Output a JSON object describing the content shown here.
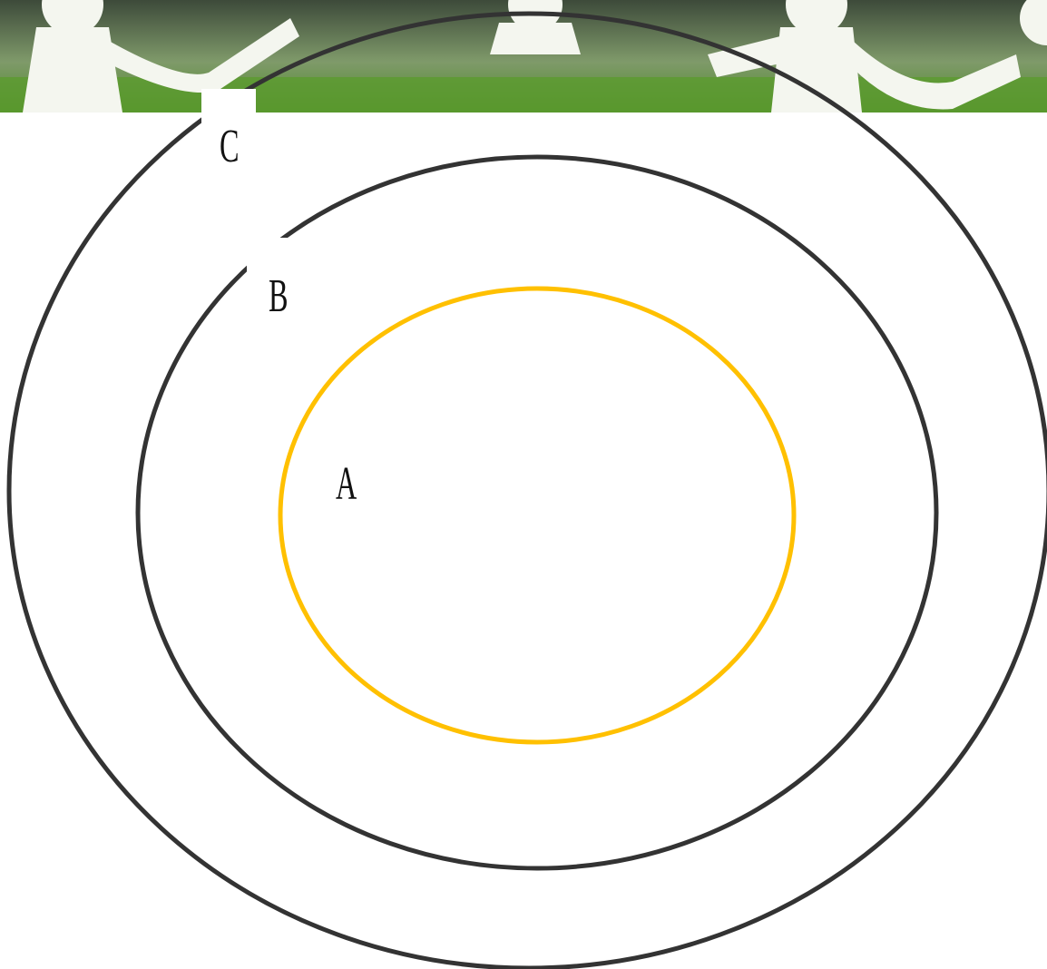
{
  "rings": [
    {
      "label": "C"
    },
    {
      "label": "B"
    },
    {
      "label": "A"
    }
  ]
}
